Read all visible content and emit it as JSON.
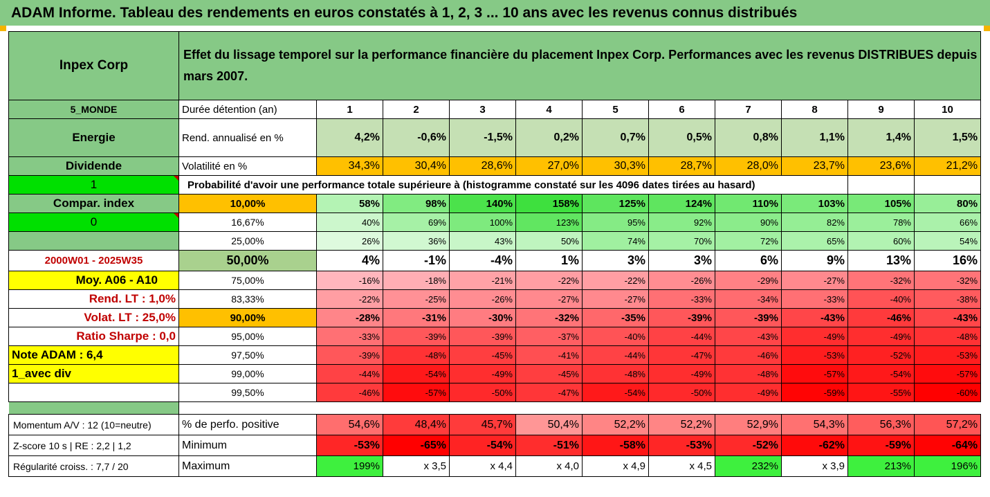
{
  "banner": "ADAM Informe. Tableau des rendements en euros constatés à 1, 2, 3 ... 10 ans avec les revenus connus distribués",
  "fund": "Inpex Corp",
  "headline": "Effet du lissage temporel sur la performance financière du placement Inpex Corp. Performances avec les revenus DISTRIBUES depuis mars 2007.",
  "side": {
    "zone": "5_MONDE",
    "sector": "Energie",
    "dividend": "Dividende",
    "flag1": "1",
    "compar": "Compar. index",
    "flag0": "0",
    "period": "2000W01 - 2025W35",
    "moy": "Moy. A06 - A10",
    "rendLT": "Rend. LT :   1,0%",
    "volatLT": "Volat. LT :   25,0%",
    "sharpe": "Ratio Sharpe :   0,0",
    "note": "Note ADAM : 6,4",
    "avecdiv": "1_avec div",
    "momentum": "Momentum A/V : 12 (10=neutre)",
    "zscore": "Z-score 10 s  | RE : 2,2 | 1,2",
    "regul": "Régularité croiss. : 7,7 / 20"
  },
  "labels": {
    "duree": "Durée détention (an)",
    "rend": "Rend. annualisé en %",
    "volat": "Volatilité en %",
    "proba": "Probabilité d'avoir une performance totale supérieure à (histogramme constaté sur les 4096 dates tirées au hasard)",
    "positive": "% de perfo. positive",
    "minimum": "Minimum",
    "maximum": "Maximum"
  },
  "years": [
    "1",
    "2",
    "3",
    "4",
    "5",
    "6",
    "7",
    "8",
    "9",
    "10"
  ],
  "rendement": [
    "4,2%",
    "-0,6%",
    "-1,5%",
    "0,2%",
    "0,7%",
    "0,5%",
    "0,8%",
    "1,1%",
    "1,4%",
    "1,5%"
  ],
  "volatilite": [
    "34,3%",
    "30,4%",
    "28,6%",
    "27,0%",
    "30,3%",
    "28,7%",
    "28,0%",
    "23,7%",
    "23,6%",
    "21,2%"
  ],
  "quantiles": [
    {
      "p": "10,00%",
      "v": [
        "58%",
        "98%",
        "140%",
        "158%",
        "125%",
        "124%",
        "110%",
        "103%",
        "105%",
        "80%"
      ]
    },
    {
      "p": "16,67%",
      "v": [
        "40%",
        "69%",
        "100%",
        "123%",
        "95%",
        "92%",
        "90%",
        "82%",
        "78%",
        "66%"
      ]
    },
    {
      "p": "25,00%",
      "v": [
        "26%",
        "36%",
        "43%",
        "50%",
        "74%",
        "70%",
        "72%",
        "65%",
        "60%",
        "54%"
      ]
    },
    {
      "p": "50,00%",
      "v": [
        "4%",
        "-1%",
        "-4%",
        "1%",
        "3%",
        "3%",
        "6%",
        "9%",
        "13%",
        "16%"
      ]
    },
    {
      "p": "75,00%",
      "v": [
        "-16%",
        "-18%",
        "-21%",
        "-22%",
        "-22%",
        "-26%",
        "-29%",
        "-27%",
        "-32%",
        "-32%"
      ]
    },
    {
      "p": "83,33%",
      "v": [
        "-22%",
        "-25%",
        "-26%",
        "-27%",
        "-27%",
        "-33%",
        "-34%",
        "-33%",
        "-40%",
        "-38%"
      ]
    },
    {
      "p": "90,00%",
      "v": [
        "-28%",
        "-31%",
        "-30%",
        "-32%",
        "-35%",
        "-39%",
        "-39%",
        "-43%",
        "-46%",
        "-43%"
      ]
    },
    {
      "p": "95,00%",
      "v": [
        "-33%",
        "-39%",
        "-39%",
        "-37%",
        "-40%",
        "-44%",
        "-43%",
        "-49%",
        "-49%",
        "-48%"
      ]
    },
    {
      "p": "97,50%",
      "v": [
        "-39%",
        "-48%",
        "-45%",
        "-41%",
        "-44%",
        "-47%",
        "-46%",
        "-53%",
        "-52%",
        "-53%"
      ]
    },
    {
      "p": "99,00%",
      "v": [
        "-44%",
        "-54%",
        "-49%",
        "-45%",
        "-48%",
        "-49%",
        "-48%",
        "-57%",
        "-54%",
        "-57%"
      ]
    },
    {
      "p": "99,50%",
      "v": [
        "-46%",
        "-57%",
        "-50%",
        "-47%",
        "-54%",
        "-50%",
        "-49%",
        "-59%",
        "-55%",
        "-60%"
      ]
    }
  ],
  "positive": [
    "54,6%",
    "48,4%",
    "45,7%",
    "50,4%",
    "52,2%",
    "52,2%",
    "52,9%",
    "54,3%",
    "56,3%",
    "57,2%"
  ],
  "minimum": [
    "-53%",
    "-65%",
    "-54%",
    "-51%",
    "-58%",
    "-53%",
    "-52%",
    "-62%",
    "-59%",
    "-64%"
  ],
  "maximum": [
    "199%",
    "x 3,5",
    "x 4,4",
    "x 4,0",
    "x 4,9",
    "x 4,5",
    "232%",
    "x 3,9",
    "213%",
    "196%"
  ]
}
